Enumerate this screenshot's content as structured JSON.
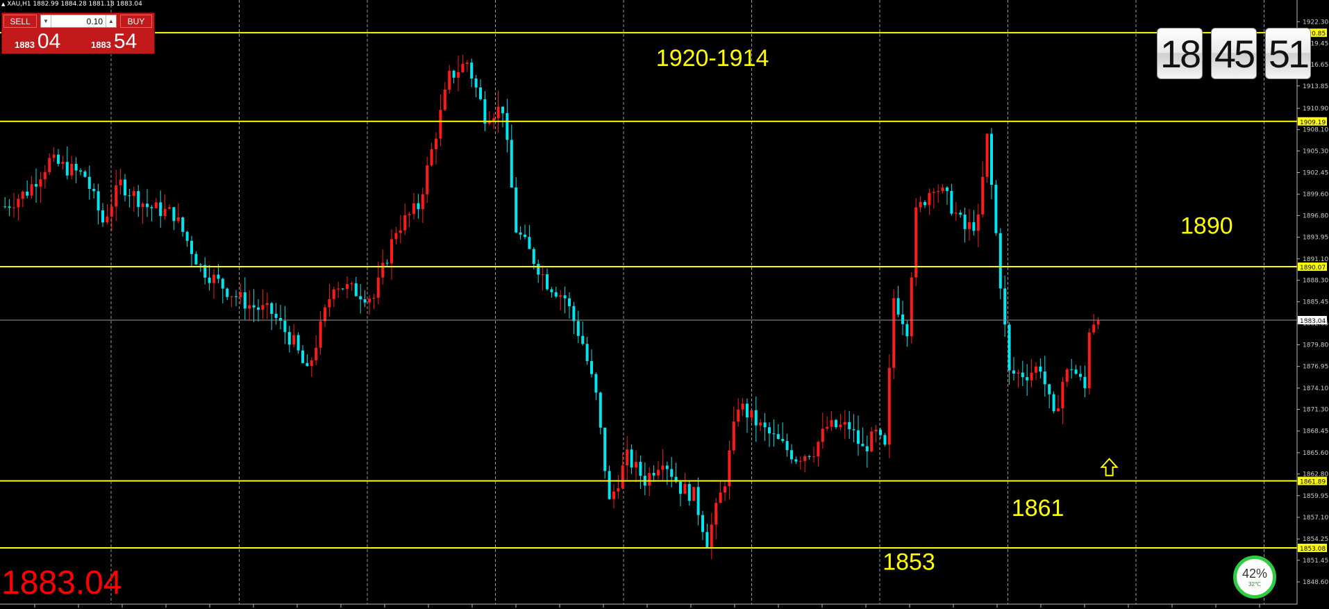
{
  "symbol_info": "XAU,H1  1882.99 1884.28 1881.18 1883.04",
  "trade_panel": {
    "sell_label": "SELL",
    "buy_label": "BUY",
    "lot": "0.10",
    "sell_small": "1883",
    "sell_big": "04",
    "buy_small": "1883",
    "buy_big": "54"
  },
  "clock": {
    "hours": "18",
    "minutes": "45",
    "seconds": "51"
  },
  "widget": {
    "percent": "42%",
    "temp": "32℃"
  },
  "colors": {
    "background": "#000000",
    "bull_candle": "#ff1a1a",
    "bear_candle": "#00e5ee",
    "level_line": "#ffff00",
    "price_text": "#ff0000",
    "annotation": "#ffff00"
  },
  "chart_data": {
    "type": "candlestick",
    "ylim": [
      1848.6,
      1924.06
    ],
    "y_ticks": [
      "1922.30",
      "1919.45",
      "1916.65",
      "1913.85",
      "1910.90",
      "1908.10",
      "1905.30",
      "1902.45",
      "1899.60",
      "1896.80",
      "1893.95",
      "1891.10",
      "1888.30",
      "1885.45",
      "1882.65",
      "1879.80",
      "1876.95",
      "1874.10",
      "1871.30",
      "1868.45",
      "1865.60",
      "1862.80",
      "1859.95",
      "1857.10",
      "1854.25",
      "1851.45",
      "1848.60"
    ],
    "levels": [
      {
        "price": 1920.85,
        "label": "1920.85"
      },
      {
        "price": 1909.19,
        "label": "1909.19"
      },
      {
        "price": 1890.07,
        "label": "1890.07"
      },
      {
        "price": 1861.89,
        "label": "1861.89"
      },
      {
        "price": 1853.08,
        "label": "1853.08"
      }
    ],
    "current_price": {
      "price": 1883.04,
      "label": "1883.04",
      "big_label": "1883.04"
    },
    "annotations": [
      {
        "text": "1920-1914",
        "price": 1916.5,
        "bar": 147
      },
      {
        "text": "1890",
        "price": 1894.4,
        "bar": 265
      },
      {
        "text": "1861",
        "price": 1857.3,
        "bar": 227
      },
      {
        "text": "1853",
        "price": 1850.2,
        "bar": 198
      }
    ],
    "arrow": {
      "bar": 249,
      "price": 1862.6
    },
    "waypoints": [
      [
        0,
        1898
      ],
      [
        5,
        1900
      ],
      [
        10,
        1904
      ],
      [
        18,
        1902
      ],
      [
        22,
        1896
      ],
      [
        26,
        1901
      ],
      [
        32,
        1898
      ],
      [
        38,
        1897
      ],
      [
        44,
        1890
      ],
      [
        50,
        1887
      ],
      [
        55,
        1885
      ],
      [
        60,
        1884
      ],
      [
        65,
        1880
      ],
      [
        68,
        1876
      ],
      [
        70,
        1880
      ],
      [
        74,
        1888
      ],
      [
        78,
        1887
      ],
      [
        83,
        1886
      ],
      [
        88,
        1895
      ],
      [
        93,
        1898
      ],
      [
        100,
        1915
      ],
      [
        104,
        1917
      ],
      [
        108,
        1910
      ],
      [
        112,
        1911
      ],
      [
        115,
        1895
      ],
      [
        118,
        1892
      ],
      [
        122,
        1888
      ],
      [
        126,
        1886
      ],
      [
        130,
        1880
      ],
      [
        133,
        1873
      ],
      [
        136,
        1859
      ],
      [
        140,
        1865
      ],
      [
        144,
        1862
      ],
      [
        148,
        1865
      ],
      [
        152,
        1861
      ],
      [
        155,
        1860
      ],
      [
        158,
        1854
      ],
      [
        162,
        1862
      ],
      [
        165,
        1872
      ],
      [
        170,
        1869
      ],
      [
        174,
        1867
      ],
      [
        178,
        1865
      ],
      [
        182,
        1866
      ],
      [
        185,
        1869
      ],
      [
        190,
        1869
      ],
      [
        193,
        1866
      ],
      [
        196,
        1868
      ],
      [
        198,
        1866
      ],
      [
        200,
        1886
      ],
      [
        203,
        1882
      ],
      [
        205,
        1897
      ],
      [
        209,
        1901
      ],
      [
        212,
        1899
      ],
      [
        216,
        1895
      ],
      [
        219,
        1896
      ],
      [
        221,
        1907
      ],
      [
        224,
        1888
      ],
      [
        226,
        1876
      ],
      [
        230,
        1876
      ],
      [
        233,
        1877
      ],
      [
        236,
        1870
      ],
      [
        238,
        1875
      ],
      [
        240,
        1877
      ],
      [
        242,
        1875
      ],
      [
        243,
        1874
      ],
      [
        244,
        1882
      ],
      [
        246,
        1884
      ]
    ],
    "bars": 247
  }
}
